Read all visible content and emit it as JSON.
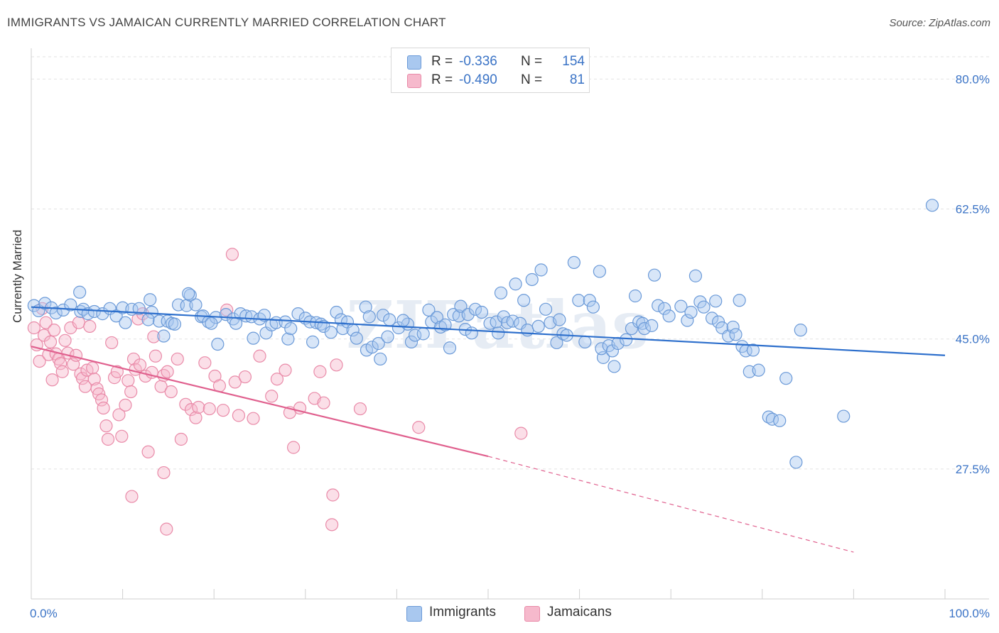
{
  "header": {
    "title": "IMMIGRANTS VS JAMAICAN CURRENTLY MARRIED CORRELATION CHART",
    "source": "Source: ZipAtlas.com"
  },
  "legend": {
    "r_label": "R =",
    "n_label": "N =",
    "rows": [
      {
        "r": "-0.336",
        "n": "154"
      },
      {
        "r": "-0.490",
        "n": "81"
      }
    ]
  },
  "colors": {
    "immigrants_fill": "#a9c8ef",
    "immigrants_stroke": "#6b9ad8",
    "immigrants_line": "#2d6fcc",
    "jamaicans_fill": "#f6b9cc",
    "jamaicans_stroke": "#e98aa8",
    "jamaicans_line": "#e0608e",
    "tick_label": "#3a73c6",
    "grid": "#e2e2e2"
  },
  "watermark": "ZIPatlas",
  "chart_data": {
    "type": "scatter",
    "title": "IMMIGRANTS VS JAMAICAN CURRENTLY MARRIED CORRELATION CHART",
    "xlabel": "",
    "ylabel": "Currently Married",
    "xlim": [
      0,
      100
    ],
    "ylim": [
      10,
      83
    ],
    "x_tick_labels": [
      "0.0%",
      "100.0%"
    ],
    "y_ticks": [
      27.5,
      45.0,
      62.5,
      80.0
    ],
    "y_tick_labels": [
      "27.5%",
      "45.0%",
      "62.5%",
      "80.0%"
    ],
    "grid": true,
    "legend_position": "top-center",
    "series": [
      {
        "name": "Immigrants",
        "r": -0.336,
        "n": 154,
        "trend": {
          "x": [
            0,
            100
          ],
          "y": [
            49.3,
            42.8
          ]
        },
        "points": [
          [
            0.3,
            49.5
          ],
          [
            0.8,
            48.8
          ],
          [
            1.5,
            49.8
          ],
          [
            2.2,
            49.2
          ],
          [
            2.7,
            48.5
          ],
          [
            3.5,
            48.9
          ],
          [
            4.3,
            49.6
          ],
          [
            5.4,
            48.7
          ],
          [
            5.3,
            51.3
          ],
          [
            5.7,
            49.0
          ],
          [
            6.2,
            48.4
          ],
          [
            6.9,
            48.7
          ],
          [
            7.8,
            48.4
          ],
          [
            8.6,
            49.1
          ],
          [
            9.3,
            48.1
          ],
          [
            10.0,
            49.2
          ],
          [
            11.0,
            49.0
          ],
          [
            10.3,
            47.2
          ],
          [
            11.8,
            49.1
          ],
          [
            13.0,
            50.3
          ],
          [
            13.2,
            48.6
          ],
          [
            12.8,
            47.6
          ],
          [
            14.0,
            47.4
          ],
          [
            14.5,
            45.4
          ],
          [
            14.9,
            47.4
          ],
          [
            15.4,
            47.1
          ],
          [
            15.7,
            47.0
          ],
          [
            16.1,
            49.6
          ],
          [
            17.0,
            49.5
          ],
          [
            17.4,
            50.9
          ],
          [
            18.0,
            49.6
          ],
          [
            17.2,
            51.1
          ],
          [
            18.6,
            48.0
          ],
          [
            18.8,
            48.1
          ],
          [
            19.4,
            47.3
          ],
          [
            20.2,
            47.9
          ],
          [
            19.7,
            47.1
          ],
          [
            20.4,
            44.3
          ],
          [
            21.3,
            48.3
          ],
          [
            22.1,
            47.7
          ],
          [
            22.4,
            47.1
          ],
          [
            22.9,
            48.4
          ],
          [
            23.5,
            48.1
          ],
          [
            24.1,
            48.0
          ],
          [
            24.3,
            45.1
          ],
          [
            25.0,
            47.7
          ],
          [
            25.5,
            48.2
          ],
          [
            25.7,
            45.8
          ],
          [
            26.3,
            46.9
          ],
          [
            26.8,
            47.2
          ],
          [
            27.8,
            47.3
          ],
          [
            28.1,
            45.0
          ],
          [
            28.4,
            46.4
          ],
          [
            29.2,
            48.4
          ],
          [
            30.0,
            47.8
          ],
          [
            30.5,
            47.3
          ],
          [
            30.8,
            44.6
          ],
          [
            31.2,
            47.2
          ],
          [
            31.7,
            47.0
          ],
          [
            32.0,
            46.7
          ],
          [
            32.8,
            45.9
          ],
          [
            33.4,
            48.6
          ],
          [
            33.9,
            47.6
          ],
          [
            34.1,
            46.4
          ],
          [
            34.6,
            47.3
          ],
          [
            35.2,
            46.2
          ],
          [
            35.6,
            45.1
          ],
          [
            36.6,
            49.3
          ],
          [
            37.0,
            48.0
          ],
          [
            36.7,
            43.5
          ],
          [
            37.3,
            43.9
          ],
          [
            38.0,
            44.4
          ],
          [
            38.2,
            42.3
          ],
          [
            38.5,
            48.2
          ],
          [
            39.0,
            45.3
          ],
          [
            39.2,
            47.6
          ],
          [
            40.2,
            46.5
          ],
          [
            41.2,
            47.0
          ],
          [
            40.7,
            47.5
          ],
          [
            41.6,
            44.6
          ],
          [
            42.0,
            45.5
          ],
          [
            42.9,
            45.7
          ],
          [
            43.5,
            48.9
          ],
          [
            43.8,
            47.3
          ],
          [
            44.4,
            47.9
          ],
          [
            44.8,
            46.6
          ],
          [
            45.3,
            46.9
          ],
          [
            45.8,
            43.8
          ],
          [
            46.2,
            48.3
          ],
          [
            46.8,
            48.1
          ],
          [
            47.0,
            49.4
          ],
          [
            47.5,
            46.3
          ],
          [
            47.8,
            48.3
          ],
          [
            48.2,
            45.8
          ],
          [
            48.6,
            49.0
          ],
          [
            49.3,
            48.6
          ],
          [
            50.2,
            47.1
          ],
          [
            50.9,
            47.3
          ],
          [
            51.1,
            45.8
          ],
          [
            51.4,
            51.2
          ],
          [
            51.7,
            48.0
          ],
          [
            52.1,
            47.2
          ],
          [
            52.7,
            47.4
          ],
          [
            53.0,
            52.4
          ],
          [
            53.5,
            47.1
          ],
          [
            53.9,
            50.2
          ],
          [
            54.3,
            46.2
          ],
          [
            54.8,
            53.0
          ],
          [
            55.5,
            46.7
          ],
          [
            55.8,
            54.3
          ],
          [
            56.3,
            49.0
          ],
          [
            56.8,
            47.2
          ],
          [
            57.5,
            44.5
          ],
          [
            57.8,
            47.6
          ],
          [
            58.2,
            45.7
          ],
          [
            58.6,
            45.5
          ],
          [
            59.4,
            55.3
          ],
          [
            59.9,
            50.2
          ],
          [
            60.6,
            44.6
          ],
          [
            61.1,
            50.2
          ],
          [
            61.5,
            49.3
          ],
          [
            62.2,
            54.1
          ],
          [
            62.6,
            42.5
          ],
          [
            62.4,
            43.7
          ],
          [
            63.2,
            44.1
          ],
          [
            63.6,
            43.4
          ],
          [
            64.2,
            44.4
          ],
          [
            63.8,
            41.3
          ],
          [
            65.1,
            44.9
          ],
          [
            65.7,
            46.4
          ],
          [
            66.1,
            50.8
          ],
          [
            66.5,
            47.3
          ],
          [
            66.9,
            47.1
          ],
          [
            67.1,
            46.4
          ],
          [
            67.9,
            46.8
          ],
          [
            68.2,
            53.6
          ],
          [
            68.6,
            49.5
          ],
          [
            69.3,
            49.1
          ],
          [
            69.8,
            48.1
          ],
          [
            71.1,
            49.4
          ],
          [
            71.8,
            47.5
          ],
          [
            72.2,
            48.6
          ],
          [
            72.7,
            53.5
          ],
          [
            73.2,
            50.0
          ],
          [
            73.6,
            49.3
          ],
          [
            74.5,
            47.8
          ],
          [
            74.9,
            50.1
          ],
          [
            75.2,
            47.3
          ],
          [
            75.6,
            46.5
          ],
          [
            76.3,
            45.4
          ],
          [
            76.8,
            46.6
          ],
          [
            77.8,
            44.0
          ],
          [
            77.1,
            45.6
          ],
          [
            78.2,
            43.4
          ],
          [
            78.6,
            40.6
          ],
          [
            79.0,
            43.5
          ],
          [
            79.6,
            40.8
          ],
          [
            80.7,
            34.5
          ],
          [
            81.1,
            34.2
          ],
          [
            81.9,
            34.0
          ],
          [
            82.6,
            39.7
          ],
          [
            83.7,
            28.4
          ],
          [
            84.2,
            46.2
          ],
          [
            77.5,
            50.2
          ],
          [
            88.9,
            34.6
          ],
          [
            98.6,
            63.0
          ]
        ]
      },
      {
        "name": "Jamaicans",
        "r": -0.49,
        "n": 81,
        "trend": {
          "x": [
            0,
            50
          ],
          "y": [
            44.0,
            29.2
          ]
        },
        "trend_extrapolated": {
          "x": [
            50,
            90
          ],
          "y": [
            29.2,
            16.3
          ]
        },
        "points": [
          [
            0.3,
            46.5
          ],
          [
            0.6,
            44.2
          ],
          [
            0.9,
            42.0
          ],
          [
            1.2,
            49.1
          ],
          [
            1.4,
            45.5
          ],
          [
            1.6,
            47.2
          ],
          [
            1.9,
            42.9
          ],
          [
            2.1,
            44.6
          ],
          [
            2.3,
            39.5
          ],
          [
            2.5,
            46.2
          ],
          [
            2.7,
            43.0
          ],
          [
            3.0,
            42.3
          ],
          [
            3.2,
            41.7
          ],
          [
            3.4,
            40.6
          ],
          [
            3.7,
            44.8
          ],
          [
            4.0,
            43.1
          ],
          [
            4.3,
            46.5
          ],
          [
            4.6,
            41.6
          ],
          [
            4.9,
            42.8
          ],
          [
            5.2,
            47.2
          ],
          [
            5.4,
            40.3
          ],
          [
            5.6,
            39.7
          ],
          [
            5.9,
            38.6
          ],
          [
            6.1,
            40.8
          ],
          [
            6.4,
            46.7
          ],
          [
            6.7,
            41.1
          ],
          [
            6.9,
            39.6
          ],
          [
            7.2,
            38.3
          ],
          [
            7.4,
            37.6
          ],
          [
            7.7,
            36.8
          ],
          [
            7.9,
            35.7
          ],
          [
            8.2,
            33.3
          ],
          [
            8.4,
            31.5
          ],
          [
            8.8,
            44.5
          ],
          [
            9.1,
            39.8
          ],
          [
            9.4,
            40.6
          ],
          [
            9.6,
            34.8
          ],
          [
            9.9,
            31.9
          ],
          [
            10.3,
            36.1
          ],
          [
            10.6,
            39.4
          ],
          [
            10.9,
            37.9
          ],
          [
            11.2,
            42.3
          ],
          [
            11.4,
            40.9
          ],
          [
            11.7,
            47.7
          ],
          [
            11.9,
            41.5
          ],
          [
            12.2,
            48.4
          ],
          [
            12.5,
            40.0
          ],
          [
            12.8,
            29.8
          ],
          [
            13.2,
            40.5
          ],
          [
            13.4,
            45.3
          ],
          [
            13.6,
            42.7
          ],
          [
            14.2,
            38.6
          ],
          [
            14.5,
            40.1
          ],
          [
            14.9,
            40.6
          ],
          [
            15.3,
            37.9
          ],
          [
            16.0,
            42.3
          ],
          [
            16.4,
            31.5
          ],
          [
            16.9,
            36.2
          ],
          [
            17.5,
            35.5
          ],
          [
            18.0,
            34.4
          ],
          [
            18.3,
            35.8
          ],
          [
            19.0,
            41.8
          ],
          [
            19.5,
            35.6
          ],
          [
            20.1,
            40.0
          ],
          [
            20.6,
            38.7
          ],
          [
            21.0,
            35.4
          ],
          [
            21.4,
            48.9
          ],
          [
            22.0,
            56.4
          ],
          [
            22.3,
            39.2
          ],
          [
            22.7,
            34.7
          ],
          [
            23.4,
            39.9
          ],
          [
            24.3,
            34.3
          ],
          [
            25.0,
            42.7
          ],
          [
            26.3,
            37.3
          ],
          [
            26.9,
            39.6
          ],
          [
            27.8,
            40.8
          ],
          [
            28.3,
            35.1
          ],
          [
            28.7,
            30.4
          ],
          [
            29.4,
            35.7
          ],
          [
            31.0,
            37.0
          ],
          [
            31.6,
            40.6
          ],
          [
            32.0,
            36.4
          ],
          [
            33.4,
            41.5
          ],
          [
            36.0,
            35.6
          ],
          [
            42.4,
            33.1
          ],
          [
            53.6,
            32.3
          ],
          [
            14.5,
            27.0
          ],
          [
            11.0,
            23.8
          ],
          [
            33.0,
            24.0
          ],
          [
            14.8,
            19.4
          ],
          [
            32.9,
            20.0
          ]
        ]
      }
    ]
  }
}
